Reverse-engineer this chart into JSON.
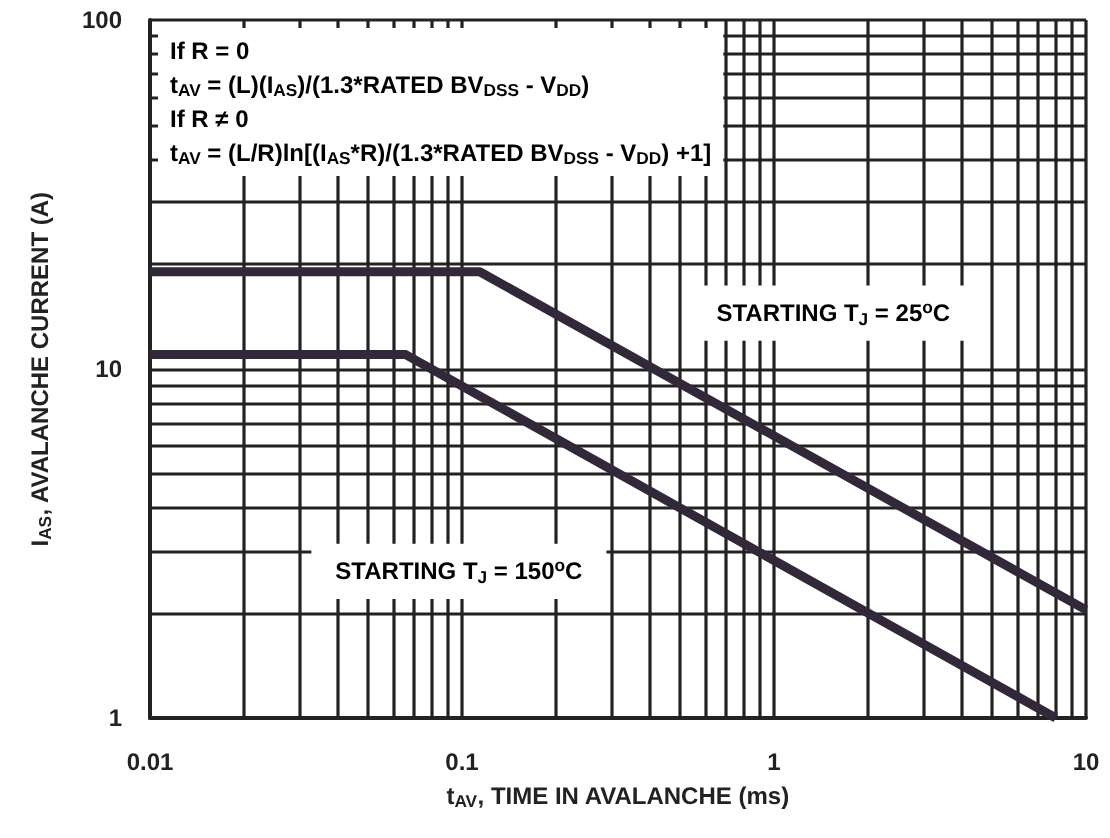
{
  "chart_data": {
    "type": "line",
    "xlabel": "t$_{AV}$, TIME IN AVALANCHE (ms)",
    "ylabel": "I$_{AS}$, AVALANCHE CURRENT (A)",
    "log": "xy",
    "xlim": [
      0.01,
      10
    ],
    "ylim": [
      1,
      100
    ],
    "xticks": [
      0.01,
      0.1,
      1,
      10
    ],
    "yticks": [
      1,
      10,
      100
    ],
    "grid": true,
    "marker": "none",
    "line_style": "solid",
    "series": [
      {
        "color": "#33283a",
        "x": [
          0.01,
          0.114,
          10
        ],
        "values": [
          19,
          19,
          2.04
        ]
      },
      {
        "color": "#33283a",
        "x": [
          0.01,
          0.066,
          8
        ],
        "values": [
          11,
          11,
          1
        ]
      }
    ],
    "annotations": [
      "If R = 0",
      "t$_{AV}$ = (L)(I$_{AS}$)/(1.3*RATED BV$_{DSS}$ - V$_{DD}$)",
      "If R ≠ 0",
      "t$_{AV}$ = (L/R)ln[(I$_{AS}$*R)/(1.3*RATED BV$_{DSS}$ - V$_{DD}$) +1]",
      "STARTING T$_{J}$ = 25$^{o}$C",
      "STARTING T$_{J}$ = 150$^{o}$C"
    ]
  }
}
